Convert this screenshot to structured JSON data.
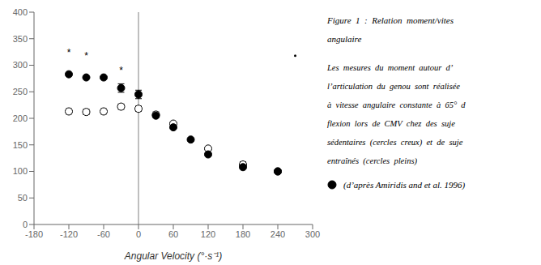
{
  "chart_data": {
    "type": "scatter",
    "title": "Figure  1  :  Relation  moment/vites\nangulaire",
    "x_label": "Angular Velocity (°·s⁻¹)",
    "xlim": [
      -180,
      300
    ],
    "ylim": [
      0,
      400
    ],
    "xticks": [
      -180,
      -120,
      -60,
      0,
      60,
      120,
      180,
      240,
      300
    ],
    "yticks": [
      0,
      50,
      100,
      150,
      200,
      250,
      300,
      350,
      400
    ],
    "series": [
      {
        "marker": "filled",
        "color": "black",
        "x": [
          -120,
          -90,
          -60,
          -30,
          0,
          30,
          60,
          90,
          120,
          180,
          240
        ],
        "values": [
          283,
          277,
          277,
          257,
          245,
          205,
          183,
          160,
          132,
          108,
          100
        ],
        "errors": [
          0,
          0,
          0,
          8,
          8,
          0,
          0,
          0,
          0,
          0,
          0
        ]
      },
      {
        "marker": "open",
        "color": "black",
        "x": [
          -120,
          -90,
          -60,
          -30,
          0,
          30,
          60,
          120,
          180,
          240
        ],
        "values": [
          213,
          212,
          213,
          222,
          218,
          207,
          190,
          143,
          113,
          100
        ],
        "errors": [
          5,
          5,
          5,
          5,
          5,
          5,
          0,
          0,
          5,
          0
        ]
      },
      {
        "marker": "dot",
        "color": "black",
        "x": [
          270
        ],
        "values": [
          318
        ]
      }
    ],
    "annotations": [
      {
        "type": "point_text",
        "x": -120,
        "y": 323,
        "text": "*"
      },
      {
        "type": "point_text",
        "x": -90,
        "y": 318,
        "text": "*"
      },
      {
        "type": "point_text",
        "x": -30,
        "y": 290,
        "text": "*"
      },
      {
        "type": "vline",
        "x": 0,
        "color": "gray"
      },
      {
        "type": "paragraph",
        "lines": [
          "Les  mesures  du  moment  autour  d’",
          "l’articulation  du  genou  sont  réalisée",
          "à  vitesse  angulaire  constante  à  65°  d",
          "flexion  lors  de  CMV  chez  des  suje",
          "sédentaires  (cercles  creux)  et  de  suje",
          "entraînés  (cercles  pleins)"
        ]
      },
      {
        "type": "source",
        "text": "(d’après Amiridis and et al. 1996)",
        "marker": "filled"
      }
    ]
  }
}
